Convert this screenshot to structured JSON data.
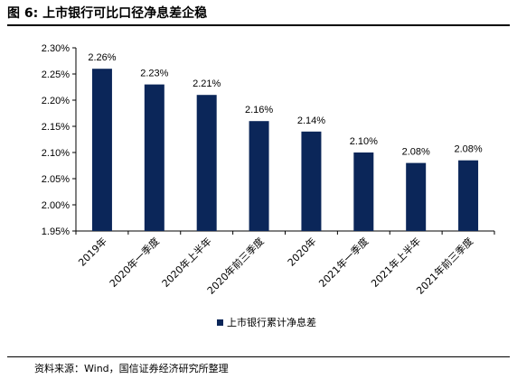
{
  "figure": {
    "title": "图 6:  上市银行可比口径净息差企稳",
    "source": "资料来源：Wind，国信证券经济研究所整理"
  },
  "colors": {
    "bar": "#0b2659",
    "axis": "#000000"
  },
  "chart_data": {
    "type": "bar",
    "title": "",
    "xlabel": "",
    "ylabel": "",
    "categories": [
      "2019年",
      "2020年一季度",
      "2020年上半年",
      "2020年前三季度",
      "2020年",
      "2021年一季度",
      "2021年上半年",
      "2021年前三季度"
    ],
    "series": [
      {
        "name": "上市银行累计净息差",
        "values": [
          2.26,
          2.23,
          2.21,
          2.16,
          2.14,
          2.1,
          2.08,
          2.085
        ],
        "labels": [
          "2.26%",
          "2.23%",
          "2.21%",
          "2.16%",
          "2.14%",
          "2.10%",
          "2.08%",
          "2.08%"
        ]
      }
    ],
    "ylim": [
      1.95,
      2.3
    ],
    "yticks": [
      1.95,
      2.0,
      2.05,
      2.1,
      2.15,
      2.2,
      2.25,
      2.3
    ],
    "ytick_labels": [
      "1.95%",
      "2.00%",
      "2.05%",
      "2.10%",
      "2.15%",
      "2.20%",
      "2.25%",
      "2.30%"
    ],
    "grid": false,
    "legend_position": "bottom"
  }
}
